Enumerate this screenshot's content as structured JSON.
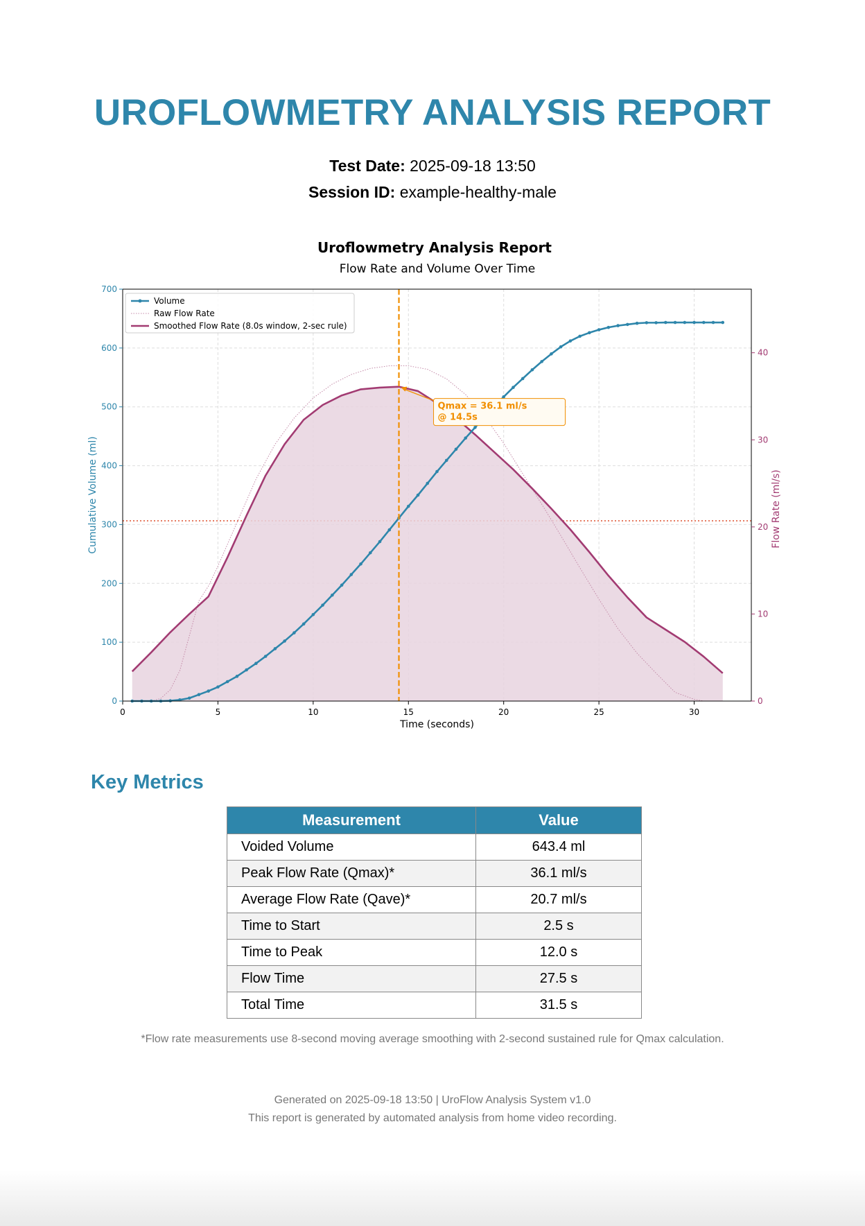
{
  "header": {
    "title": "UROFLOWMETRY ANALYSIS REPORT",
    "test_date_label": "Test Date:",
    "test_date_value": "2025-09-18 13:50",
    "session_id_label": "Session ID:",
    "session_id_value": "example-healthy-male"
  },
  "chart_data": {
    "type": "line",
    "title": "Uroflowmetry Analysis Report",
    "subtitle": "Flow Rate and Volume Over Time",
    "xlabel": "Time (seconds)",
    "ylabel_left": "Cumulative Volume (ml)",
    "ylabel_right": "Flow Rate (ml/s)",
    "xlim": [
      0,
      33
    ],
    "ylim_left": [
      0,
      700
    ],
    "ylim_right": [
      0,
      40
    ],
    "x_ticks": [
      0,
      5,
      10,
      15,
      20,
      25,
      30
    ],
    "y_left_ticks": [
      0,
      100,
      200,
      300,
      400,
      500,
      600,
      700
    ],
    "y_right_ticks": [
      0,
      10,
      20,
      30,
      40
    ],
    "grid": true,
    "legend_position": "top-left",
    "legend": [
      "Volume",
      "Raw Flow Rate",
      "Smoothed Flow Rate (8.0s window, 2-sec rule)"
    ],
    "colors": {
      "volume": "#2e86ab",
      "smoothed": "#a23b72",
      "fill": "#e8d3df",
      "raw": "#c48aa8",
      "qmax": "#f18f01",
      "average": "#e05c3c"
    },
    "volume_series": {
      "name": "Volume",
      "x": [
        0.5,
        1,
        1.5,
        2,
        2.5,
        3,
        3.5,
        4,
        4.5,
        5,
        5.5,
        6,
        6.5,
        7,
        7.5,
        8,
        8.5,
        9,
        9.5,
        10,
        10.5,
        11,
        11.5,
        12,
        12.5,
        13,
        13.5,
        14,
        14.5,
        15,
        15.5,
        16,
        16.5,
        17,
        17.5,
        18,
        18.5,
        19,
        19.5,
        20,
        20.5,
        21,
        21.5,
        22,
        22.5,
        23,
        23.5,
        24,
        24.5,
        25,
        25.5,
        26,
        26.5,
        27,
        27.5,
        28,
        28.5,
        29,
        29.5,
        30,
        30.5,
        31,
        31.5
      ],
      "y": [
        0,
        0,
        0,
        0,
        0.5,
        2,
        5,
        11,
        17,
        24,
        33,
        42,
        53,
        64,
        76,
        89,
        102,
        116,
        131,
        147,
        163,
        180,
        197,
        215,
        233,
        252,
        271,
        291,
        311,
        331,
        350,
        370,
        390,
        409,
        428,
        447,
        465,
        483,
        500,
        517,
        533,
        548,
        563,
        577,
        590,
        602,
        612,
        620,
        626,
        631,
        635,
        638,
        640,
        642,
        643,
        643,
        643.4,
        643.4,
        643.4,
        643.4,
        643.4,
        643.4,
        643.4
      ]
    },
    "smoothed_series": {
      "name": "Smoothed Flow Rate (8.0s window, 2-sec rule)",
      "x": [
        0.5,
        1.5,
        2.5,
        3.5,
        4.5,
        5.5,
        6.5,
        7.5,
        8.5,
        9.5,
        10.5,
        11.5,
        12.5,
        13.5,
        14.5,
        15.5,
        16.5,
        17.5,
        18.5,
        19.5,
        20.5,
        21.5,
        22.5,
        23.5,
        24.5,
        25.5,
        26.5,
        27.5,
        28.5,
        29.5,
        30.5,
        31.5
      ],
      "y": [
        3.4,
        5.6,
        7.9,
        10.0,
        12.0,
        16.5,
        21.3,
        25.9,
        29.5,
        32.3,
        34.0,
        35.1,
        35.8,
        36.0,
        36.1,
        35.6,
        34.2,
        32.5,
        30.6,
        28.6,
        26.6,
        24.4,
        22.1,
        19.7,
        17.1,
        14.4,
        11.9,
        9.6,
        8.2,
        6.8,
        5.1,
        3.2
      ]
    },
    "raw_series": {
      "name": "Raw Flow Rate",
      "x": [
        1.5,
        2,
        2.5,
        3,
        3.5,
        4,
        4.5,
        5,
        6,
        7,
        8,
        9,
        10,
        11,
        12,
        13,
        14,
        15,
        16,
        17,
        18,
        19,
        20,
        21,
        22,
        23,
        24,
        25,
        26,
        27,
        28,
        29,
        29.5,
        30,
        30.5
      ],
      "y": [
        0,
        0.3,
        1.3,
        3.5,
        7.5,
        11.5,
        13.2,
        15.5,
        20.5,
        25.5,
        29.5,
        32.5,
        34.8,
        36.4,
        37.5,
        38.2,
        38.5,
        38.5,
        38.1,
        37.0,
        35.2,
        32.7,
        29.6,
        26.1,
        22.6,
        19.0,
        15.3,
        11.7,
        8.3,
        5.5,
        3.2,
        1.0,
        0.6,
        0.2,
        0
      ]
    },
    "qmax": {
      "x": 14.5,
      "value": 36.1,
      "label_line1": "Qmax = 36.1 ml/s",
      "label_line2": "@ 14.5s"
    },
    "average_flow": 20.7
  },
  "metrics": {
    "heading": "Key Metrics",
    "columns": [
      "Measurement",
      "Value"
    ],
    "rows": [
      [
        "Voided Volume",
        "643.4 ml"
      ],
      [
        "Peak Flow Rate (Qmax)*",
        "36.1 ml/s"
      ],
      [
        "Average Flow Rate (Qave)*",
        "20.7 ml/s"
      ],
      [
        "Time to Start",
        "2.5 s"
      ],
      [
        "Time to Peak",
        "12.0 s"
      ],
      [
        "Flow Time",
        "27.5 s"
      ],
      [
        "Total Time",
        "31.5 s"
      ]
    ]
  },
  "footnote": "*Flow rate measurements use 8-second moving average smoothing with 2-second sustained rule for Qmax calculation.",
  "footer": {
    "generated": "Generated on 2025-09-18 13:50 | UroFlow Analysis System v1.0",
    "disclaimer": "This report is generated by automated analysis from home video recording."
  }
}
